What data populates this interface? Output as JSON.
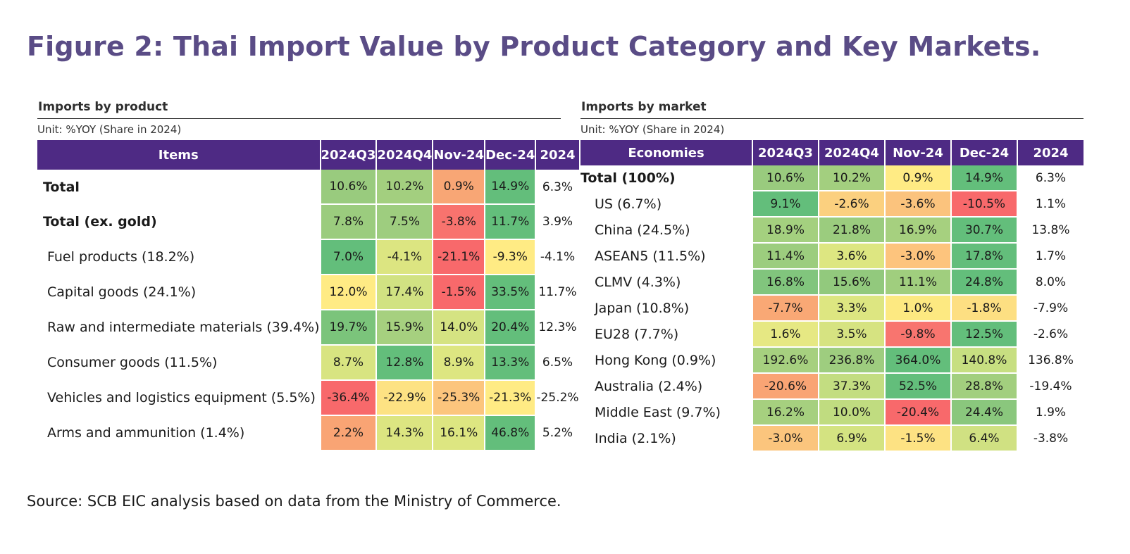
{
  "title": "Figure 2: Thai Import Value by Product Category and Key Markets.",
  "source": "Source: SCB EIC analysis based on data from the Ministry of Commerce.",
  "colors": {
    "header_bg": "#4e2a84",
    "title": "#5a4c86",
    "scale_low": "#f8696b",
    "scale_mid": "#ffeb84",
    "scale_high": "#63be7b"
  },
  "chart_data": [
    {
      "type": "table",
      "title": "Imports by product",
      "unit": "Unit: %YOY (Share in 2024)",
      "columns": [
        "Items",
        "2024Q3",
        "2024Q4",
        "Nov-24",
        "Dec-24",
        "2024"
      ],
      "rows": [
        {
          "label": "Total",
          "bold": true,
          "values": [
            "10.6%",
            "10.2%",
            "0.9%",
            "14.9%",
            "6.3%"
          ]
        },
        {
          "label": "Total (ex. gold)",
          "bold": true,
          "values": [
            "7.8%",
            "7.5%",
            "-3.8%",
            "11.7%",
            "3.9%"
          ]
        },
        {
          "label": "Fuel products (18.2%)",
          "bold": false,
          "values": [
            "7.0%",
            "-4.1%",
            "-21.1%",
            "-9.3%",
            "-4.1%"
          ]
        },
        {
          "label": "Capital goods (24.1%)",
          "bold": false,
          "values": [
            "12.0%",
            "17.4%",
            "-1.5%",
            "33.5%",
            "11.7%"
          ]
        },
        {
          "label": "Raw and intermediate materials (39.4%)",
          "bold": false,
          "values": [
            "19.7%",
            "15.9%",
            "14.0%",
            "20.4%",
            "12.3%"
          ]
        },
        {
          "label": "Consumer goods (11.5%)",
          "bold": false,
          "values": [
            "8.7%",
            "12.8%",
            "8.9%",
            "13.3%",
            "6.5%"
          ]
        },
        {
          "label": "Vehicles and logistics equipment (5.5%)",
          "bold": false,
          "values": [
            "-36.4%",
            "-22.9%",
            "-25.3%",
            "-21.3%",
            "-25.2%"
          ]
        },
        {
          "label": "Arms and ammunition (1.4%)",
          "bold": false,
          "values": [
            "2.2%",
            "14.3%",
            "16.1%",
            "46.8%",
            "5.2%"
          ]
        }
      ]
    },
    {
      "type": "table",
      "title": "Imports by market",
      "unit": "Unit: %YOY (Share in 2024)",
      "columns": [
        "Economies",
        "2024Q3",
        "2024Q4",
        "Nov-24",
        "Dec-24",
        "2024"
      ],
      "rows": [
        {
          "label": "Total (100%)",
          "bold": true,
          "values": [
            "10.6%",
            "10.2%",
            "0.9%",
            "14.9%",
            "6.3%"
          ]
        },
        {
          "label": "US (6.7%)",
          "bold": false,
          "values": [
            "9.1%",
            "-2.6%",
            "-3.6%",
            "-10.5%",
            "1.1%"
          ]
        },
        {
          "label": "China (24.5%)",
          "bold": false,
          "values": [
            "18.9%",
            "21.8%",
            "16.9%",
            "30.7%",
            "13.8%"
          ]
        },
        {
          "label": "ASEAN5 (11.5%)",
          "bold": false,
          "values": [
            "11.4%",
            "3.6%",
            "-3.0%",
            "17.8%",
            "1.7%"
          ]
        },
        {
          "label": "CLMV (4.3%)",
          "bold": false,
          "values": [
            "16.8%",
            "15.6%",
            "11.1%",
            "24.8%",
            "8.0%"
          ]
        },
        {
          "label": "Japan (10.8%)",
          "bold": false,
          "values": [
            "-7.7%",
            "3.3%",
            "1.0%",
            "-1.8%",
            "-7.9%"
          ]
        },
        {
          "label": "EU28 (7.7%)",
          "bold": false,
          "values": [
            "1.6%",
            "3.5%",
            "-9.8%",
            "12.5%",
            "-2.6%"
          ]
        },
        {
          "label": "Hong Kong (0.9%)",
          "bold": false,
          "values": [
            "192.6%",
            "236.8%",
            "364.0%",
            "140.8%",
            "136.8%"
          ]
        },
        {
          "label": "Australia (2.4%)",
          "bold": false,
          "values": [
            "-20.6%",
            "37.3%",
            "52.5%",
            "28.8%",
            "-19.4%"
          ]
        },
        {
          "label": "Middle East (9.7%)",
          "bold": false,
          "values": [
            "16.2%",
            "10.0%",
            "-20.4%",
            "24.4%",
            "1.9%"
          ]
        },
        {
          "label": "India (2.1%)",
          "bold": false,
          "values": [
            "-3.0%",
            "6.9%",
            "-1.5%",
            "6.4%",
            "-3.8%"
          ]
        }
      ]
    }
  ],
  "cell_colors": {
    "product": [
      [
        "#99cb7e",
        "#a3cf7f",
        "#f8a675",
        "#63be7b"
      ],
      [
        "#9bcc7e",
        "#9ecd7f",
        "#f8736e",
        "#63be7b"
      ],
      [
        "#63be7b",
        "#dce581",
        "#f8696b",
        "#ffeb84"
      ],
      [
        "#ffeb84",
        "#d1e282",
        "#f8696b",
        "#63be7b"
      ],
      [
        "#7bc47b",
        "#a6d07f",
        "#d5e382",
        "#63be7b"
      ],
      [
        "#d8e481",
        "#63be7b",
        "#dde681",
        "#63be7b"
      ],
      [
        "#f8696b",
        "#fde283",
        "#fcc57d",
        "#ffeb84"
      ],
      [
        "#f9a474",
        "#dce581",
        "#dde681",
        "#63be7b"
      ]
    ],
    "market": [
      [
        "#99cb7e",
        "#a3cf7f",
        "#ffeb84",
        "#63be7b"
      ],
      [
        "#63be7b",
        "#fbd07f",
        "#fbc37d",
        "#f8696b"
      ],
      [
        "#a4d07f",
        "#9bcc7e",
        "#a6d07f",
        "#63be7b"
      ],
      [
        "#9ccd7e",
        "#dde681",
        "#fdc47d",
        "#63be7b"
      ],
      [
        "#81c57d",
        "#92c97d",
        "#a0ce7e",
        "#63be7b"
      ],
      [
        "#f9a875",
        "#dde681",
        "#fde981",
        "#fddf82"
      ],
      [
        "#e6e883",
        "#d6e381",
        "#f8756f",
        "#63be7b"
      ],
      [
        "#a6d07f",
        "#9ecd7f",
        "#63be7b",
        "#c7df81"
      ],
      [
        "#f9a474",
        "#c3dd81",
        "#63be7b",
        "#a2cf7e"
      ],
      [
        "#a6d07f",
        "#c0dc80",
        "#f8696b",
        "#8ac77d"
      ],
      [
        "#fbc57d",
        "#d4e381",
        "#fde283",
        "#d0e182"
      ]
    ]
  }
}
